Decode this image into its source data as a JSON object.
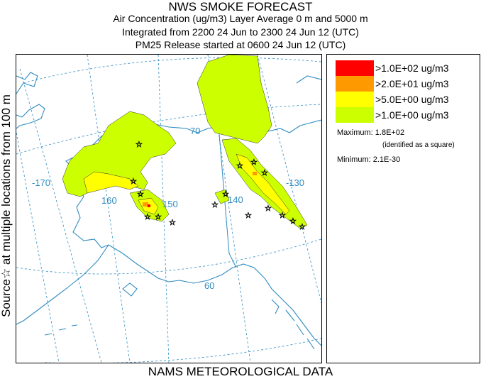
{
  "header": {
    "title": "NWS SMOKE FORECAST",
    "line2": "Air Concentration (ug/m3) Layer Average    0 m and  5000 m",
    "line3": "Integrated from 2200 24 Jun to 2300 24 Jun 12 (UTC)",
    "line4": "PM25 Release started at 0600 24 Jun 12 (UTC)"
  },
  "side_label": "Source☆ at multiple locations  from   100 m",
  "footer": "NAMS METEOROLOGICAL DATA",
  "legend": {
    "items": [
      {
        "label": ">1.0E+02 ug/m3",
        "color": "#ff0000"
      },
      {
        "label": ">2.0E+01 ug/m3",
        "color": "#ff9900"
      },
      {
        "label": ">5.0E+00 ug/m3",
        "color": "#ffff00"
      },
      {
        "label": ">1.0E+00 ug/m3",
        "color": "#ccff00"
      }
    ],
    "maximum": "Maximum: 1.8E+02",
    "maximum_note": "(identified as a square)",
    "minimum": "Minimum: 2.1E-30"
  },
  "map": {
    "grid_labels": {
      "lat_70": "70",
      "lat_60": "60",
      "lon_170": "-170",
      "lon_160": "160",
      "lon_150": "150",
      "lon_140": "140",
      "lon_130": "-130"
    },
    "colors": {
      "coast": "#2e8bc0",
      "grid": "#2e8bc0",
      "plume_light": "#ccff00",
      "plume_mid": "#ffff00",
      "plume_high": "#ff9900",
      "plume_max": "#ff0000"
    }
  }
}
